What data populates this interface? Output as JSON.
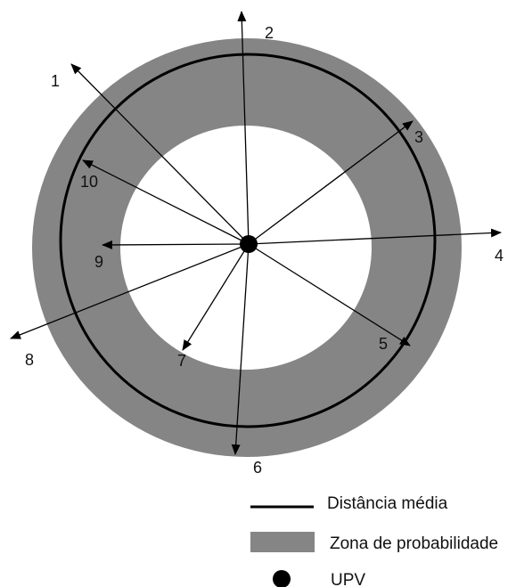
{
  "colors": {
    "zone": "#858585",
    "background": "#ffffff",
    "line": "#000000",
    "text": "#111111"
  },
  "rays": [
    {
      "label": "1"
    },
    {
      "label": "2"
    },
    {
      "label": "3"
    },
    {
      "label": "4"
    },
    {
      "label": "5"
    },
    {
      "label": "6"
    },
    {
      "label": "7"
    },
    {
      "label": "8"
    },
    {
      "label": "9"
    },
    {
      "label": "10"
    }
  ],
  "legend": {
    "mean_distance": {
      "label": "Distância média",
      "icon": "line-icon"
    },
    "probability_zone": {
      "label": "Zona de probabilidade",
      "icon": "gray-rectangle-icon"
    },
    "upv": {
      "label": "UPV",
      "icon": "black-dot-icon"
    }
  }
}
